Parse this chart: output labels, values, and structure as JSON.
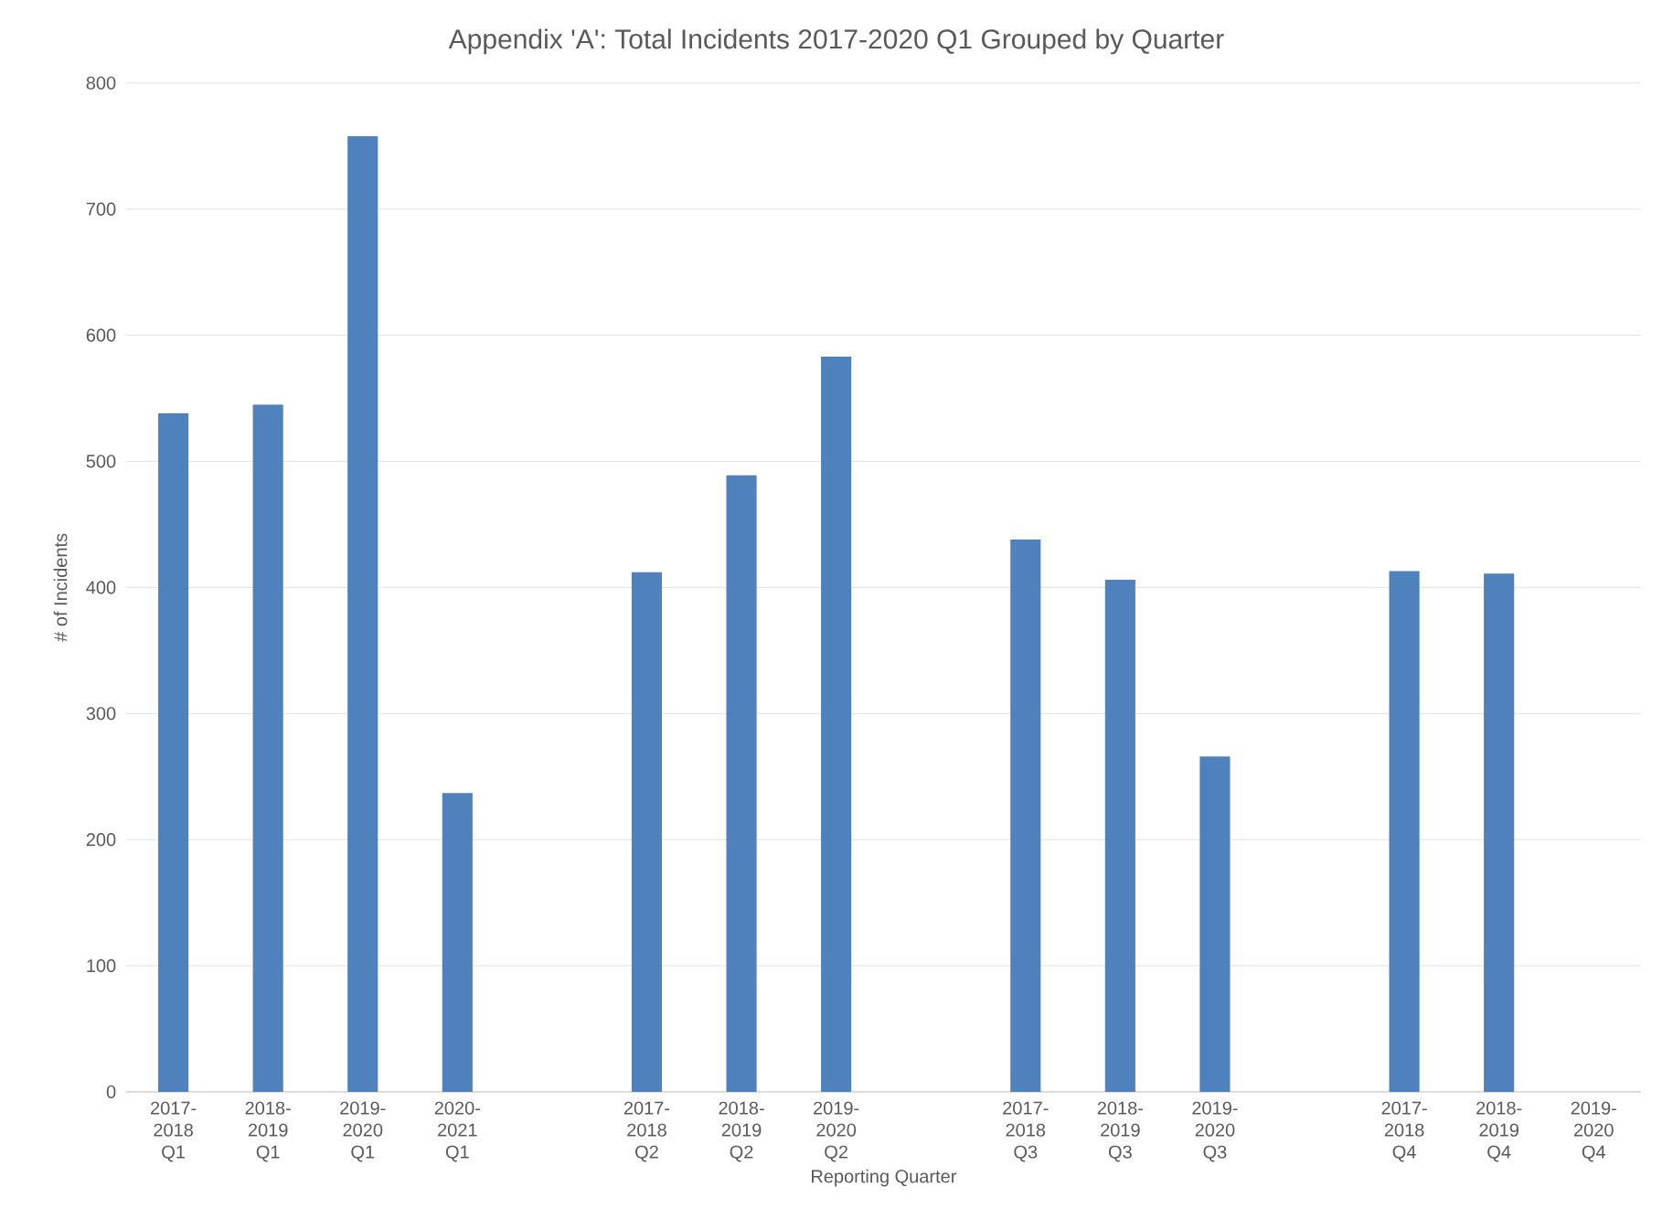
{
  "chart_data": {
    "type": "bar",
    "title": "Appendix 'A': Total Incidents 2017-2020 Q1 Grouped by Quarter",
    "xlabel": "Reporting Quarter",
    "ylabel": "# of Incidents",
    "categories": [
      "2017-2018 Q1",
      "2018-2019 Q1",
      "2019-2020 Q1",
      "2020-2021 Q1",
      null,
      "2017-2018 Q2",
      "2018-2019 Q2",
      "2019-2020 Q2",
      null,
      "2017-2018 Q3",
      "2018-2019 Q3",
      "2019-2020 Q3",
      null,
      "2017-2018 Q4",
      "2018-2019 Q4",
      "2019-2020 Q4"
    ],
    "values": [
      538,
      545,
      758,
      237,
      null,
      412,
      489,
      583,
      null,
      438,
      406,
      266,
      null,
      413,
      411,
      null
    ],
    "color": "#4f81bd",
    "ylim": [
      0,
      800
    ],
    "yticks": [
      0,
      100,
      200,
      300,
      400,
      500,
      600,
      700,
      800
    ],
    "grid": "y"
  }
}
